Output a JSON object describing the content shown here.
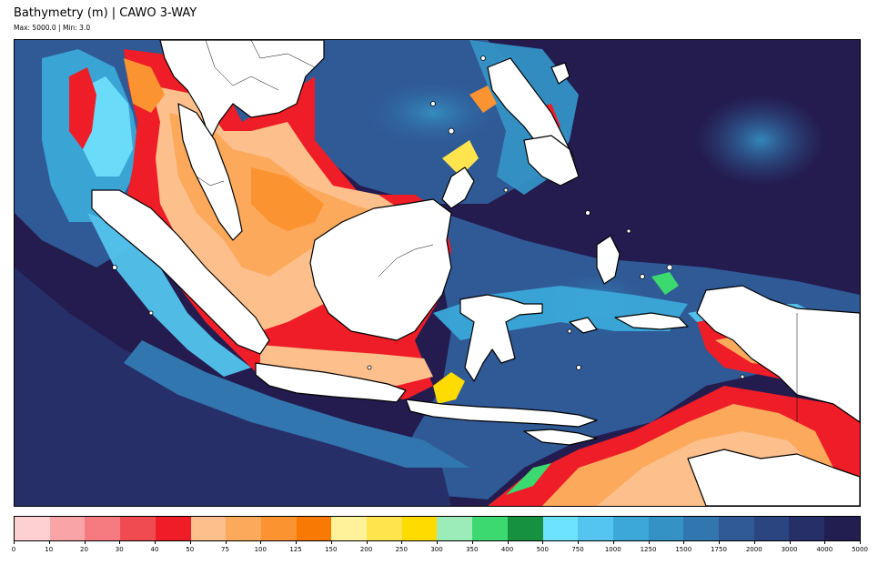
{
  "header": {
    "title": "Bathymetry (m) | CAWO 3-WAY",
    "subtitle": "Max: 5000.0 | Min: 3.0"
  },
  "colors": {
    "deep_ocean": "#241c4f",
    "mid_ocean": "#2f5a96",
    "slope": "#3a8fc8",
    "land": "#ffffff",
    "coastline": "#000000",
    "shelf_shallow": "#f2232b",
    "shelf_mid": "#ff9c3e"
  },
  "colorbar": {
    "ticks": [
      "0",
      "10",
      "20",
      "30",
      "40",
      "50",
      "75",
      "100",
      "125",
      "150",
      "200",
      "250",
      "300",
      "350",
      "400",
      "500",
      "750",
      "1000",
      "1250",
      "1500",
      "1750",
      "2000",
      "3000",
      "4000",
      "5000"
    ],
    "colors": [
      "#fdd0d2",
      "#f9a5a8",
      "#f57b80",
      "#f14b52",
      "#ee1d27",
      "#fdbf8b",
      "#fca95b",
      "#fb9330",
      "#f87a05",
      "#fff29b",
      "#ffe44d",
      "#ffdb00",
      "#9cecb9",
      "#3cd970",
      "#16913f",
      "#6ee3ff",
      "#53c5ee",
      "#3ba8d9",
      "#3592c5",
      "#3276b0",
      "#2f5a96",
      "#2b4580",
      "#272f69",
      "#231e50"
    ]
  }
}
